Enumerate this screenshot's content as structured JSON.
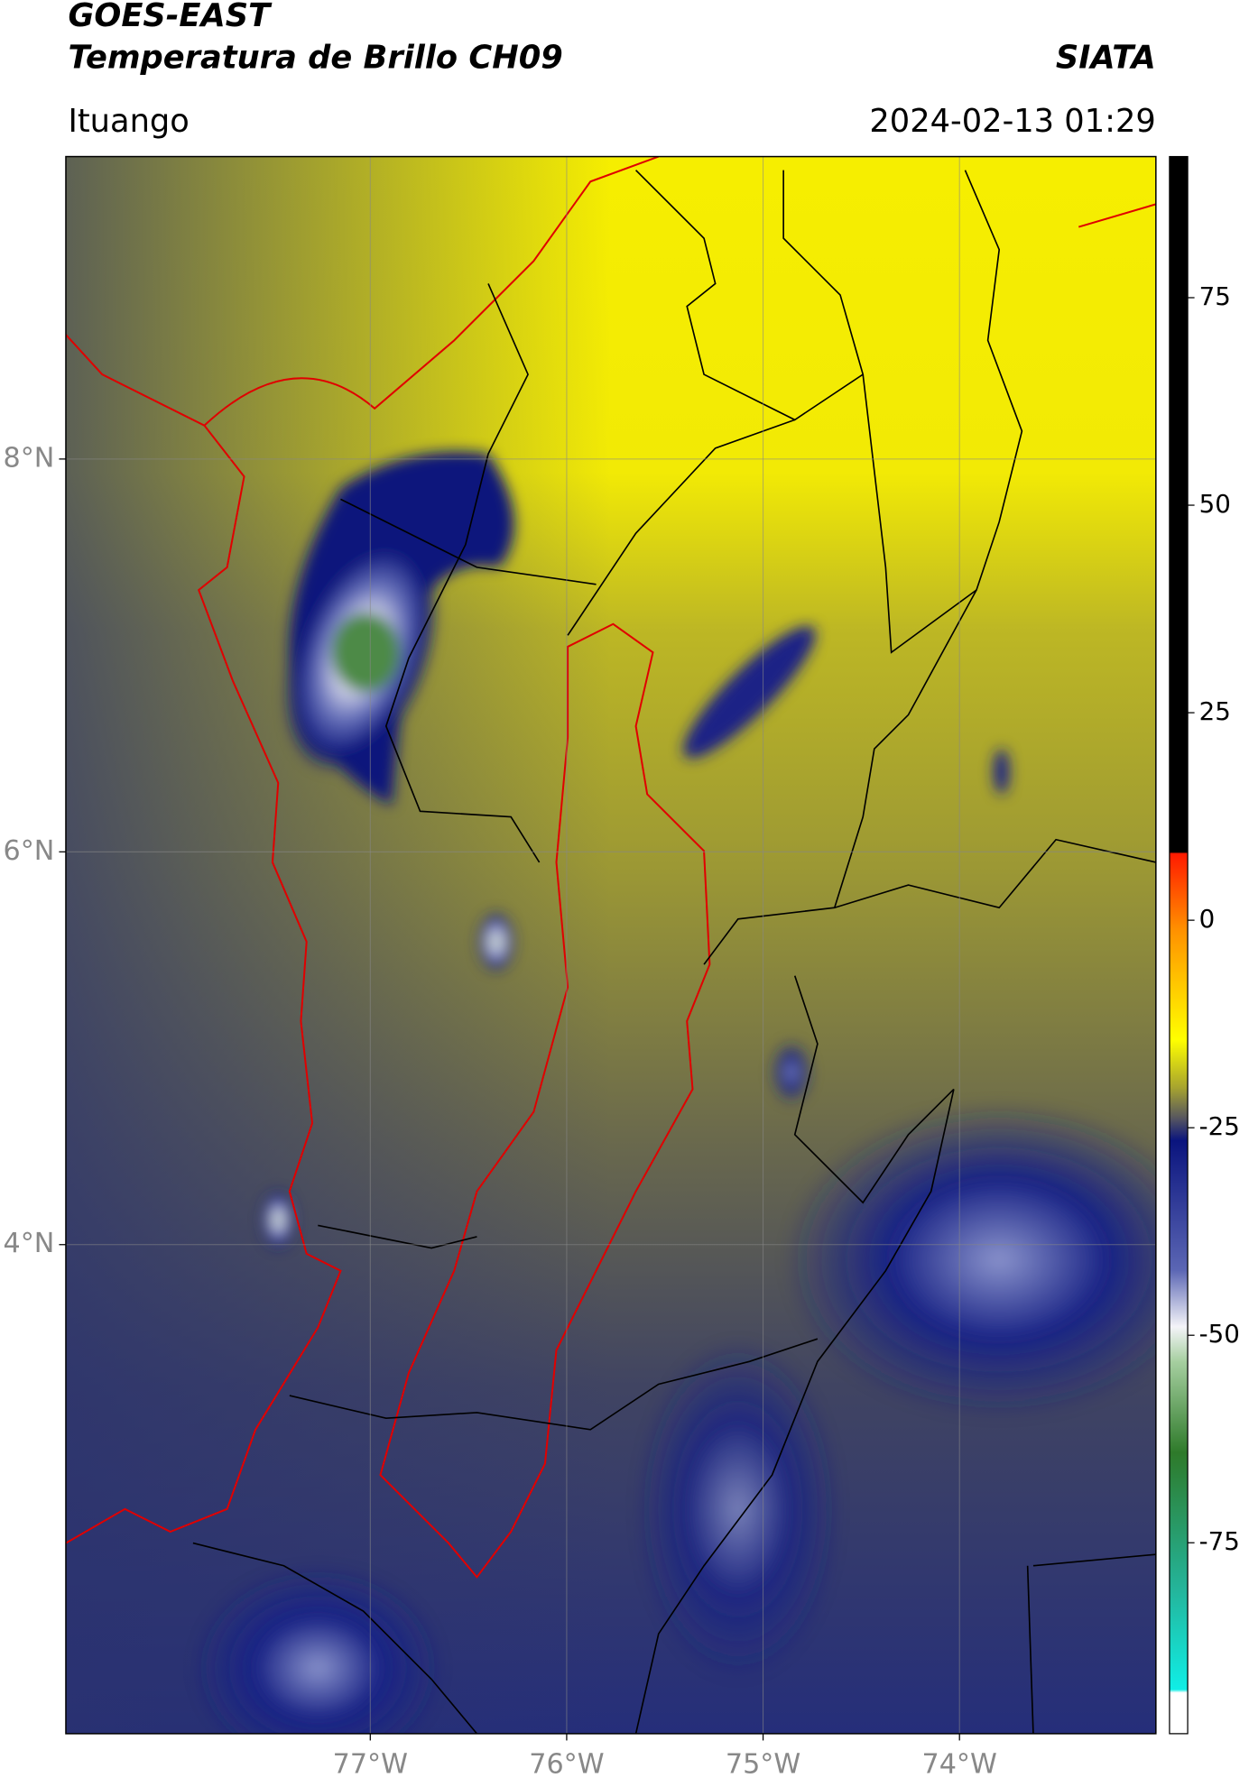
{
  "header": {
    "title": "GOES-EAST",
    "subtitle": "Temperatura de Brillo CH09",
    "brand": "SIATA",
    "location": "Ituango",
    "timestamp": "2024-02-13 01:29"
  },
  "map": {
    "xlim": [
      -78.55,
      -73.0
    ],
    "ylim": [
      1.51,
      9.54
    ],
    "xticks": [
      {
        "value": -77,
        "label": "77°W"
      },
      {
        "value": -76,
        "label": "76°W"
      },
      {
        "value": -75,
        "label": "75°W"
      },
      {
        "value": -74,
        "label": "74°W"
      }
    ],
    "yticks": [
      {
        "value": 8,
        "label": "8°N"
      },
      {
        "value": 6,
        "label": "6°N"
      },
      {
        "value": 4,
        "label": "4°N"
      }
    ],
    "grid": true
  },
  "colorbar": {
    "range": [
      -98,
      92
    ],
    "ticks": [
      75,
      50,
      25,
      0,
      -25,
      -50,
      -75
    ]
  }
}
